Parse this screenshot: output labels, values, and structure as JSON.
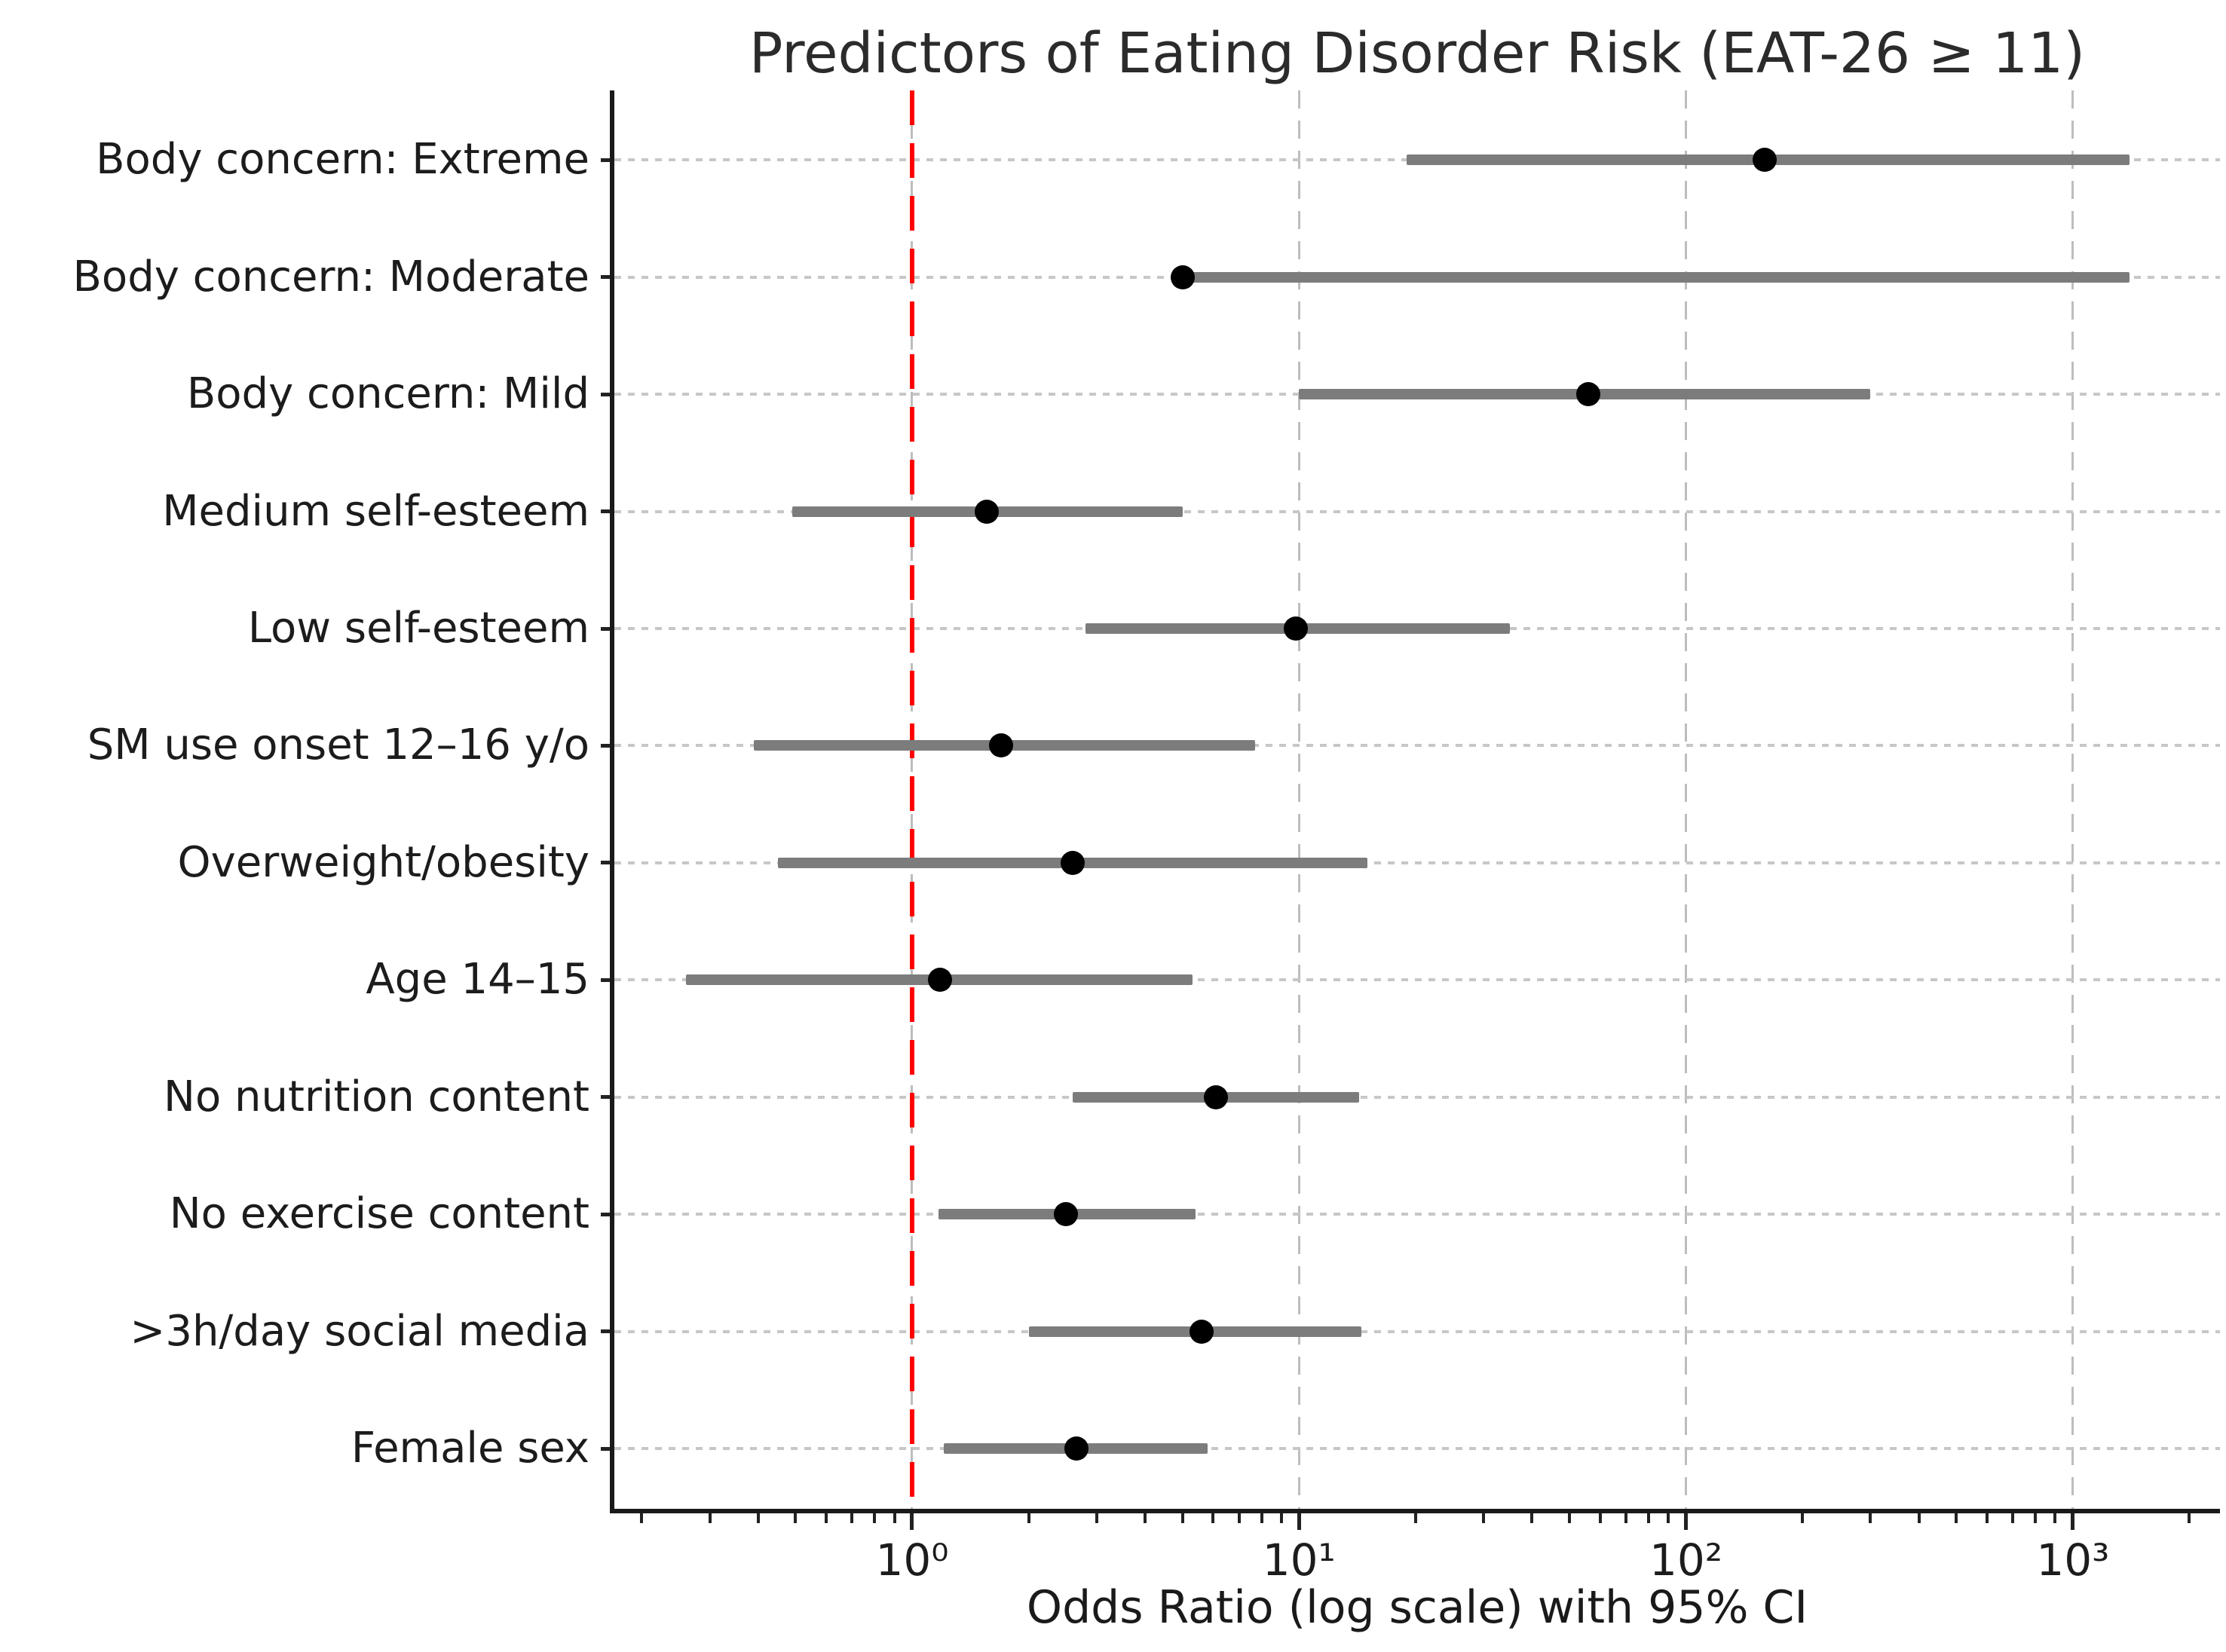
{
  "chart_data": {
    "type": "scatter",
    "subtype": "forest-plot-odds-ratios",
    "title": "Predictors of Eating Disorder Risk (EAT-26 ≥ 11)",
    "xlabel": "Odds Ratio (log scale) with 95% CI",
    "x_scale": "log",
    "xlim": [
      0.17,
      2400
    ],
    "x_ticks": [
      1,
      10,
      100,
      1000
    ],
    "x_tick_labels": [
      "10⁰",
      "10¹",
      "10²",
      "10³"
    ],
    "x_minor_ticks_per_decade": [
      2,
      3,
      4,
      5,
      6,
      7,
      8,
      9
    ],
    "reference_line_x": 1.0,
    "grid": "on",
    "legend": "none",
    "points": [
      {
        "label": "Body concern: Extreme",
        "or": 160,
        "ci_low": 19,
        "ci_high": 1400
      },
      {
        "label": "Body concern: Moderate",
        "or": 5.0,
        "ci_low": 4.8,
        "ci_high": 1400
      },
      {
        "label": "Body concern: Mild",
        "or": 56,
        "ci_low": 10,
        "ci_high": 300
      },
      {
        "label": "Medium self-esteem",
        "or": 1.56,
        "ci_low": 0.49,
        "ci_high": 5.0
      },
      {
        "label": "Low self-esteem",
        "or": 9.8,
        "ci_low": 2.8,
        "ci_high": 35
      },
      {
        "label": "SM use onset 12–16 y/o",
        "or": 1.7,
        "ci_low": 0.39,
        "ci_high": 7.7
      },
      {
        "label": "Overweight/obesity",
        "or": 2.6,
        "ci_low": 0.45,
        "ci_high": 15
      },
      {
        "label": "Age 14–15",
        "or": 1.18,
        "ci_low": 0.26,
        "ci_high": 5.3
      },
      {
        "label": "No nutrition content",
        "or": 6.1,
        "ci_low": 2.6,
        "ci_high": 14.3
      },
      {
        "label": "No exercise content",
        "or": 2.5,
        "ci_low": 1.17,
        "ci_high": 5.4
      },
      {
        "label": ">3h/day social media",
        "or": 5.6,
        "ci_low": 2.0,
        "ci_high": 14.5
      },
      {
        "label": "Female sex",
        "or": 2.66,
        "ci_low": 1.21,
        "ci_high": 5.8
      }
    ],
    "colors": {
      "point": "#000000",
      "ci_bar": "#7c7c7c",
      "reference_line": "#ff0000",
      "grid": "#c7c7c7",
      "spine": "#1a1a1a"
    }
  }
}
